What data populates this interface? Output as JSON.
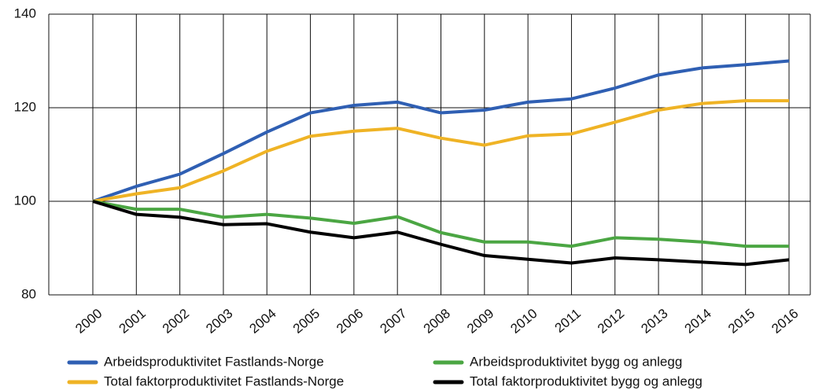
{
  "chart_data": {
    "type": "line",
    "categories": [
      "2000",
      "2001",
      "2002",
      "2003",
      "2004",
      "2005",
      "2006",
      "2007",
      "2008",
      "2009",
      "2010",
      "2011",
      "2012",
      "2013",
      "2014",
      "2015",
      "2016"
    ],
    "series": [
      {
        "name": "Arbeidsproduktivitet Fastlands-Norge",
        "color": "#2f5fb3",
        "values": [
          100,
          103.2,
          105.8,
          110.2,
          114.8,
          118.9,
          120.5,
          121.2,
          118.9,
          119.5,
          121.2,
          121.9,
          124.2,
          127,
          128.5,
          129.2,
          130
        ]
      },
      {
        "name": "Total faktorproduktivitet Fastlands-Norge",
        "color": "#efb325",
        "values": [
          100,
          101.6,
          102.9,
          106.5,
          110.7,
          113.9,
          115,
          115.6,
          113.5,
          112,
          114,
          114.4,
          116.9,
          119.5,
          120.9,
          121.5,
          121.5
        ]
      },
      {
        "name": "Arbeidsproduktivitet bygg og anlegg",
        "color": "#4ba643",
        "values": [
          100,
          98.3,
          98.3,
          96.6,
          97.2,
          96.4,
          95.3,
          96.7,
          93.3,
          91.3,
          91.3,
          90.4,
          92.2,
          91.9,
          91.3,
          90.4,
          90.4
        ]
      },
      {
        "name": "Total faktorproduktivitet bygg og anlegg",
        "color": "#000000",
        "values": [
          100,
          97.2,
          96.6,
          95,
          95.2,
          93.4,
          92.2,
          93.4,
          90.8,
          88.4,
          87.6,
          86.8,
          87.9,
          87.5,
          87,
          86.5,
          87.5
        ]
      }
    ],
    "ylim": [
      80,
      140
    ],
    "yticks": [
      80,
      100,
      120,
      140
    ],
    "grid": true
  }
}
